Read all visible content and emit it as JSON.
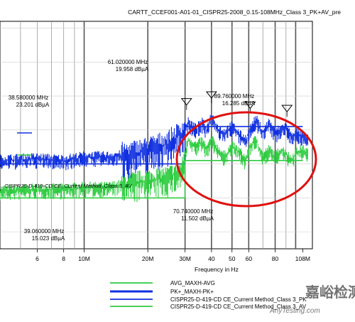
{
  "chart_data": {
    "type": "line",
    "title": "CARTT_CCEF001-A01-01_CISPR25-2008_0.15-108MHz_Class 3_PK+AV_pre",
    "xlabel": "Frequency in Hz",
    "ylabel": "",
    "x_scale": "log",
    "xlim_mhz": [
      4.0,
      120.0
    ],
    "ylim_dbuA": [
      -5,
      62
    ],
    "grid": true,
    "x_tick_labels": [
      {
        "label": "6",
        "value_mhz": 6
      },
      {
        "label": "8",
        "value_mhz": 8
      },
      {
        "label": "10M",
        "value_mhz": 10
      },
      {
        "label": "20M",
        "value_mhz": 20
      },
      {
        "label": "30M",
        "value_mhz": 30
      },
      {
        "label": "40",
        "value_mhz": 40
      },
      {
        "label": "50",
        "value_mhz": 50
      },
      {
        "label": "60",
        "value_mhz": 60
      },
      {
        "label": "80",
        "value_mhz": 80
      },
      {
        "label": "108M",
        "value_mhz": 108
      }
    ],
    "series": [
      {
        "name": "AVG_MAXH-AVG",
        "color": "#2ecc40",
        "points_mhz_dbuA": [
          [
            4.0,
            12
          ],
          [
            6,
            12.5
          ],
          [
            8,
            12.5
          ],
          [
            10,
            13
          ],
          [
            13,
            13
          ],
          [
            16,
            14
          ],
          [
            20,
            15
          ],
          [
            25,
            16
          ],
          [
            29,
            18
          ],
          [
            31,
            27
          ],
          [
            34,
            25
          ],
          [
            36,
            26.5
          ],
          [
            38,
            24
          ],
          [
            40,
            27
          ],
          [
            43,
            24
          ],
          [
            46,
            22
          ],
          [
            50,
            25
          ],
          [
            55,
            23
          ],
          [
            58,
            21
          ],
          [
            61,
            25
          ],
          [
            65,
            27
          ],
          [
            70,
            22
          ],
          [
            75,
            24
          ],
          [
            80,
            22
          ],
          [
            85,
            24
          ],
          [
            90,
            23
          ],
          [
            95,
            21
          ],
          [
            100,
            23
          ],
          [
            108,
            24
          ],
          [
            114,
            23
          ]
        ]
      },
      {
        "name": "PK+_MAXH-PK+",
        "color": "#1030e0",
        "points_mhz_dbuA": [
          [
            4.0,
            21
          ],
          [
            6,
            21.5
          ],
          [
            8,
            21
          ],
          [
            10,
            22
          ],
          [
            13,
            22
          ],
          [
            16,
            22.5
          ],
          [
            20,
            24
          ],
          [
            25,
            26
          ],
          [
            29,
            29
          ],
          [
            31,
            32
          ],
          [
            34,
            30
          ],
          [
            36,
            32
          ],
          [
            38,
            30
          ],
          [
            40,
            34
          ],
          [
            43,
            30
          ],
          [
            46,
            29
          ],
          [
            50,
            31
          ],
          [
            55,
            28
          ],
          [
            58,
            27
          ],
          [
            61,
            30
          ],
          [
            65,
            33
          ],
          [
            70,
            29
          ],
          [
            75,
            32
          ],
          [
            80,
            29
          ],
          [
            85,
            30
          ],
          [
            90,
            31
          ],
          [
            95,
            28
          ],
          [
            100,
            29
          ],
          [
            108,
            28
          ],
          [
            114,
            27
          ]
        ]
      },
      {
        "name": "CISPR25-D-419-CD CE_Current Method_Class 3_PK",
        "color": "#1030e0",
        "points_mhz_dbuA": [
          [
            4.0,
            20
          ],
          [
            30,
            20
          ],
          [
            30,
            31
          ],
          [
            108,
            31
          ]
        ]
      },
      {
        "name": "CISPR25-D-419-CD CE_Current Method_Class 3_AV",
        "color": "#2ecc40",
        "points_mhz_dbuA": [
          [
            4.0,
            10
          ],
          [
            30,
            10
          ],
          [
            30,
            21
          ],
          [
            108,
            21
          ]
        ]
      }
    ],
    "annotations": [
      {
        "text": [
          "61.020000 MHz",
          "19.958 dBµA"
        ]
      },
      {
        "text": [
          "38.580000 MHz",
          "23.201 dBµA"
        ]
      },
      {
        "text": [
          "89.760000 MHz",
          "16.285 dBµA"
        ]
      },
      {
        "text": [
          "70.740000 MHz",
          "11.502 dBµA"
        ]
      },
      {
        "text": [
          "39.060000 MHz",
          "15.023 dBµA"
        ]
      }
    ],
    "peak_markers_mhz_dbuA": [
      [
        30.5,
        38
      ],
      [
        40,
        40
      ],
      [
        61,
        37
      ],
      [
        91,
        36
      ]
    ],
    "inline_plot_label": "CISPR25-D-419-CD CE_Current Method_Class 3_AV",
    "highlight": {
      "shape": "ellipse",
      "color": "#e01010"
    },
    "legend_placement": "bottom-center"
  },
  "watermark": {
    "text": "嘉峪检测网",
    "subtext": "AnyTesting.com"
  }
}
